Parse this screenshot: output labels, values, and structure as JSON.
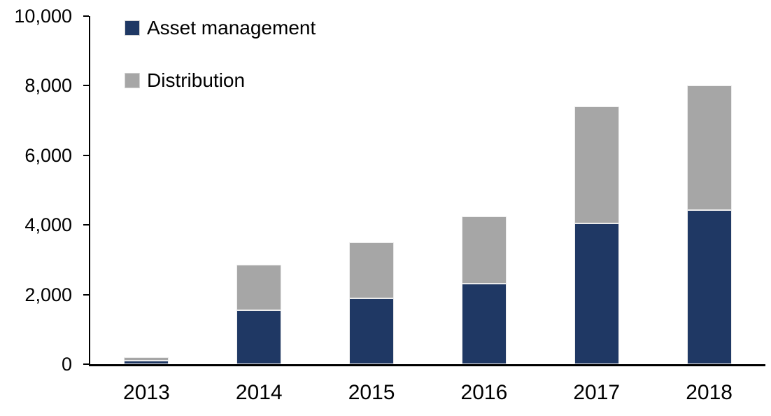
{
  "chart_data": {
    "type": "bar",
    "stacked": true,
    "title": "",
    "xlabel": "",
    "ylabel": "",
    "categories": [
      "2013",
      "2014",
      "2015",
      "2016",
      "2017",
      "2018"
    ],
    "series": [
      {
        "name": "Asset management",
        "color": "#1F3864",
        "values": [
          100,
          1550,
          1900,
          2320,
          4050,
          4430
        ]
      },
      {
        "name": "Distribution",
        "color": "#A6A6A6",
        "values": [
          100,
          1310,
          1600,
          1930,
          3350,
          3570
        ]
      }
    ],
    "totals": [
      200,
      2860,
      3500,
      4250,
      7400,
      8000
    ],
    "ylim": [
      0,
      10000
    ],
    "yticks": [
      0,
      2000,
      4000,
      6000,
      8000,
      10000
    ],
    "ytick_labels": [
      "0",
      "2,000",
      "4,000",
      "6,000",
      "8,000",
      "10,000"
    ],
    "grid": false,
    "legend_position": "top-left-inside",
    "axis_color": "#000000",
    "text_color": "#000000"
  }
}
